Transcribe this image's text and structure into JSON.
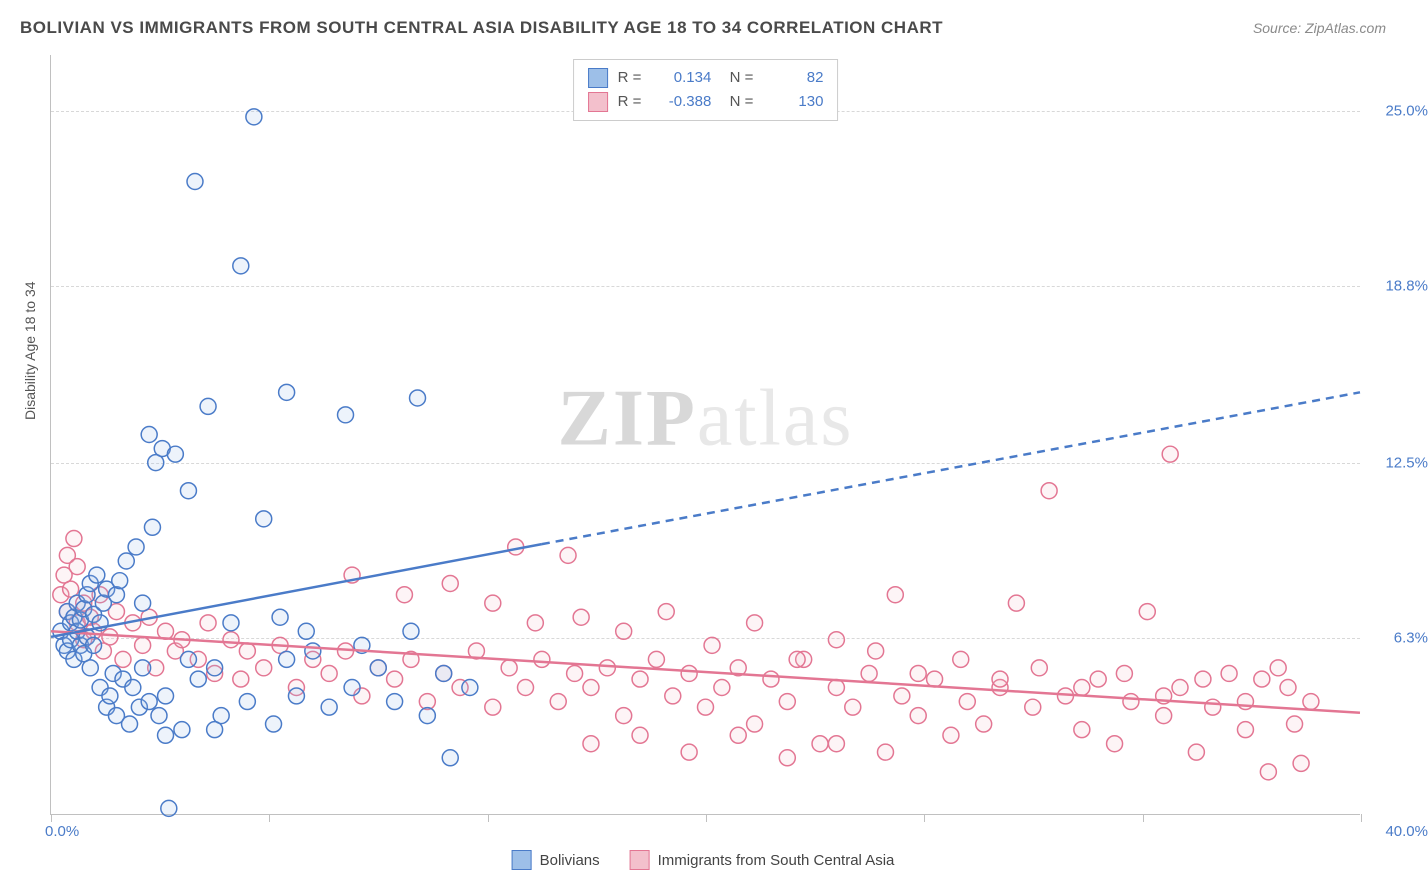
{
  "header": {
    "title": "BOLIVIAN VS IMMIGRANTS FROM SOUTH CENTRAL ASIA DISABILITY AGE 18 TO 34 CORRELATION CHART",
    "source": "Source: ZipAtlas.com"
  },
  "watermark": {
    "zip": "ZIP",
    "atlas": "atlas"
  },
  "chart": {
    "type": "scatter",
    "y_axis_label": "Disability Age 18 to 34",
    "xlim": [
      0,
      40
    ],
    "ylim": [
      0,
      27
    ],
    "x_range_labels": {
      "min": "0.0%",
      "max": "40.0%"
    },
    "y_ticks": [
      {
        "v": 6.3,
        "label": "6.3%"
      },
      {
        "v": 12.5,
        "label": "12.5%"
      },
      {
        "v": 18.8,
        "label": "18.8%"
      },
      {
        "v": 25.0,
        "label": "25.0%"
      }
    ],
    "x_tick_positions": [
      0,
      6.67,
      13.33,
      20,
      26.67,
      33.33,
      40
    ],
    "background_color": "#ffffff",
    "grid_color": "#d8d8d8",
    "marker_radius": 8,
    "marker_stroke_width": 1.5,
    "marker_fill_opacity": 0.18,
    "trend_line_width": 2.5
  },
  "stats_box": {
    "rows": [
      {
        "swatch_fill": "#9dbfe8",
        "swatch_stroke": "#4a7bc8",
        "r_label": "R =",
        "r_val": "0.134",
        "n_label": "N =",
        "n_val": "82"
      },
      {
        "swatch_fill": "#f3c0cc",
        "swatch_stroke": "#e37693",
        "r_label": "R =",
        "r_val": "-0.388",
        "n_label": "N =",
        "n_val": "130"
      }
    ]
  },
  "bottom_legend": {
    "items": [
      {
        "swatch_fill": "#9dbfe8",
        "swatch_stroke": "#4a7bc8",
        "label": "Bolivians"
      },
      {
        "swatch_fill": "#f3c0cc",
        "swatch_stroke": "#e37693",
        "label": "Immigrants from South Central Asia"
      }
    ]
  },
  "series": {
    "blue": {
      "stroke": "#4a7bc8",
      "fill": "#9dbfe8",
      "trend_solid": {
        "x1": 0,
        "y1": 6.3,
        "x2": 15,
        "y2": 9.6
      },
      "trend_dash": {
        "x1": 15,
        "y1": 9.6,
        "x2": 40,
        "y2": 15.0
      },
      "points": [
        [
          0.3,
          6.5
        ],
        [
          0.4,
          6.0
        ],
        [
          0.5,
          7.2
        ],
        [
          0.5,
          5.8
        ],
        [
          0.6,
          6.8
        ],
        [
          0.6,
          6.2
        ],
        [
          0.7,
          7.0
        ],
        [
          0.7,
          5.5
        ],
        [
          0.8,
          6.5
        ],
        [
          0.8,
          7.5
        ],
        [
          0.9,
          6.0
        ],
        [
          0.9,
          6.9
        ],
        [
          1.0,
          7.3
        ],
        [
          1.0,
          5.7
        ],
        [
          1.1,
          7.8
        ],
        [
          1.1,
          6.3
        ],
        [
          1.2,
          8.2
        ],
        [
          1.2,
          5.2
        ],
        [
          1.3,
          6.0
        ],
        [
          1.3,
          7.1
        ],
        [
          1.4,
          8.5
        ],
        [
          1.5,
          4.5
        ],
        [
          1.5,
          6.8
        ],
        [
          1.6,
          7.5
        ],
        [
          1.7,
          3.8
        ],
        [
          1.7,
          8.0
        ],
        [
          1.8,
          4.2
        ],
        [
          1.9,
          5.0
        ],
        [
          2.0,
          7.8
        ],
        [
          2.0,
          3.5
        ],
        [
          2.1,
          8.3
        ],
        [
          2.2,
          4.8
        ],
        [
          2.3,
          9.0
        ],
        [
          2.4,
          3.2
        ],
        [
          2.5,
          4.5
        ],
        [
          2.6,
          9.5
        ],
        [
          2.7,
          3.8
        ],
        [
          2.8,
          5.2
        ],
        [
          3.0,
          4.0
        ],
        [
          3.1,
          10.2
        ],
        [
          3.2,
          12.5
        ],
        [
          3.3,
          3.5
        ],
        [
          3.4,
          13.0
        ],
        [
          3.5,
          4.2
        ],
        [
          3.6,
          0.2
        ],
        [
          3.8,
          12.8
        ],
        [
          4.0,
          3.0
        ],
        [
          4.2,
          5.5
        ],
        [
          4.4,
          22.5
        ],
        [
          4.5,
          4.8
        ],
        [
          4.8,
          14.5
        ],
        [
          5.0,
          5.2
        ],
        [
          5.2,
          3.5
        ],
        [
          5.5,
          6.8
        ],
        [
          5.8,
          19.5
        ],
        [
          6.0,
          4.0
        ],
        [
          6.2,
          24.8
        ],
        [
          6.5,
          10.5
        ],
        [
          6.8,
          3.2
        ],
        [
          7.0,
          7.0
        ],
        [
          7.2,
          5.5
        ],
        [
          7.5,
          4.2
        ],
        [
          7.8,
          6.5
        ],
        [
          8.0,
          5.8
        ],
        [
          8.5,
          3.8
        ],
        [
          9.0,
          14.2
        ],
        [
          9.2,
          4.5
        ],
        [
          9.5,
          6.0
        ],
        [
          10.0,
          5.2
        ],
        [
          10.5,
          4.0
        ],
        [
          11.0,
          6.5
        ],
        [
          11.2,
          14.8
        ],
        [
          11.5,
          3.5
        ],
        [
          12.0,
          5.0
        ],
        [
          12.2,
          2.0
        ],
        [
          12.8,
          4.5
        ],
        [
          7.2,
          15.0
        ],
        [
          5.0,
          3.0
        ],
        [
          4.2,
          11.5
        ],
        [
          3.0,
          13.5
        ],
        [
          2.8,
          7.5
        ],
        [
          3.5,
          2.8
        ]
      ]
    },
    "pink": {
      "stroke": "#e37693",
      "fill": "#f3c0cc",
      "trend_solid": {
        "x1": 0,
        "y1": 6.5,
        "x2": 40,
        "y2": 3.6
      },
      "points": [
        [
          0.3,
          7.8
        ],
        [
          0.4,
          8.5
        ],
        [
          0.5,
          9.2
        ],
        [
          0.5,
          7.2
        ],
        [
          0.6,
          8.0
        ],
        [
          0.7,
          9.8
        ],
        [
          0.8,
          6.8
        ],
        [
          0.8,
          8.8
        ],
        [
          1.0,
          7.5
        ],
        [
          1.0,
          6.2
        ],
        [
          1.2,
          7.0
        ],
        [
          1.3,
          6.5
        ],
        [
          1.5,
          7.8
        ],
        [
          1.6,
          5.8
        ],
        [
          1.8,
          6.3
        ],
        [
          2.0,
          7.2
        ],
        [
          2.2,
          5.5
        ],
        [
          2.5,
          6.8
        ],
        [
          2.8,
          6.0
        ],
        [
          3.0,
          7.0
        ],
        [
          3.2,
          5.2
        ],
        [
          3.5,
          6.5
        ],
        [
          3.8,
          5.8
        ],
        [
          4.0,
          6.2
        ],
        [
          4.5,
          5.5
        ],
        [
          4.8,
          6.8
        ],
        [
          5.0,
          5.0
        ],
        [
          5.5,
          6.2
        ],
        [
          5.8,
          4.8
        ],
        [
          6.0,
          5.8
        ],
        [
          6.5,
          5.2
        ],
        [
          7.0,
          6.0
        ],
        [
          7.5,
          4.5
        ],
        [
          8.0,
          5.5
        ],
        [
          8.5,
          5.0
        ],
        [
          9.0,
          5.8
        ],
        [
          9.5,
          4.2
        ],
        [
          10.0,
          5.2
        ],
        [
          10.5,
          4.8
        ],
        [
          11.0,
          5.5
        ],
        [
          11.5,
          4.0
        ],
        [
          12.0,
          5.0
        ],
        [
          12.5,
          4.5
        ],
        [
          13.0,
          5.8
        ],
        [
          13.5,
          3.8
        ],
        [
          14.0,
          5.2
        ],
        [
          14.2,
          9.5
        ],
        [
          14.5,
          4.5
        ],
        [
          15.0,
          5.5
        ],
        [
          15.5,
          4.0
        ],
        [
          15.8,
          9.2
        ],
        [
          16.0,
          5.0
        ],
        [
          16.5,
          4.5
        ],
        [
          17.0,
          5.2
        ],
        [
          17.5,
          3.5
        ],
        [
          18.0,
          4.8
        ],
        [
          18.5,
          5.5
        ],
        [
          19.0,
          4.2
        ],
        [
          19.5,
          5.0
        ],
        [
          20.0,
          3.8
        ],
        [
          20.5,
          4.5
        ],
        [
          21.0,
          5.2
        ],
        [
          21.5,
          3.2
        ],
        [
          22.0,
          4.8
        ],
        [
          22.5,
          4.0
        ],
        [
          23.0,
          5.5
        ],
        [
          23.5,
          2.5
        ],
        [
          24.0,
          4.5
        ],
        [
          24.5,
          3.8
        ],
        [
          25.0,
          5.0
        ],
        [
          25.5,
          2.2
        ],
        [
          25.8,
          7.8
        ],
        [
          26.0,
          4.2
        ],
        [
          26.5,
          3.5
        ],
        [
          27.0,
          4.8
        ],
        [
          27.5,
          2.8
        ],
        [
          28.0,
          4.0
        ],
        [
          28.5,
          3.2
        ],
        [
          29.0,
          4.5
        ],
        [
          29.5,
          7.5
        ],
        [
          30.0,
          3.8
        ],
        [
          30.5,
          11.5
        ],
        [
          31.0,
          4.2
        ],
        [
          31.5,
          3.0
        ],
        [
          32.0,
          4.8
        ],
        [
          32.5,
          2.5
        ],
        [
          33.0,
          4.0
        ],
        [
          33.5,
          7.2
        ],
        [
          34.0,
          3.5
        ],
        [
          34.2,
          12.8
        ],
        [
          34.5,
          4.5
        ],
        [
          35.0,
          2.2
        ],
        [
          35.5,
          3.8
        ],
        [
          36.0,
          5.0
        ],
        [
          36.5,
          3.0
        ],
        [
          37.0,
          4.8
        ],
        [
          37.2,
          1.5
        ],
        [
          37.5,
          5.2
        ],
        [
          38.0,
          3.2
        ],
        [
          38.2,
          1.8
        ],
        [
          38.5,
          4.0
        ],
        [
          9.2,
          8.5
        ],
        [
          10.8,
          7.8
        ],
        [
          12.2,
          8.2
        ],
        [
          13.5,
          7.5
        ],
        [
          14.8,
          6.8
        ],
        [
          16.2,
          7.0
        ],
        [
          17.5,
          6.5
        ],
        [
          18.8,
          7.2
        ],
        [
          20.2,
          6.0
        ],
        [
          21.5,
          6.8
        ],
        [
          22.8,
          5.5
        ],
        [
          24.0,
          6.2
        ],
        [
          25.2,
          5.8
        ],
        [
          26.5,
          5.0
        ],
        [
          27.8,
          5.5
        ],
        [
          29.0,
          4.8
        ],
        [
          30.2,
          5.2
        ],
        [
          31.5,
          4.5
        ],
        [
          32.8,
          5.0
        ],
        [
          34.0,
          4.2
        ],
        [
          35.2,
          4.8
        ],
        [
          36.5,
          4.0
        ],
        [
          37.8,
          4.5
        ],
        [
          16.5,
          2.5
        ],
        [
          18.0,
          2.8
        ],
        [
          19.5,
          2.2
        ],
        [
          21.0,
          2.8
        ],
        [
          22.5,
          2.0
        ],
        [
          24.0,
          2.5
        ]
      ]
    }
  }
}
